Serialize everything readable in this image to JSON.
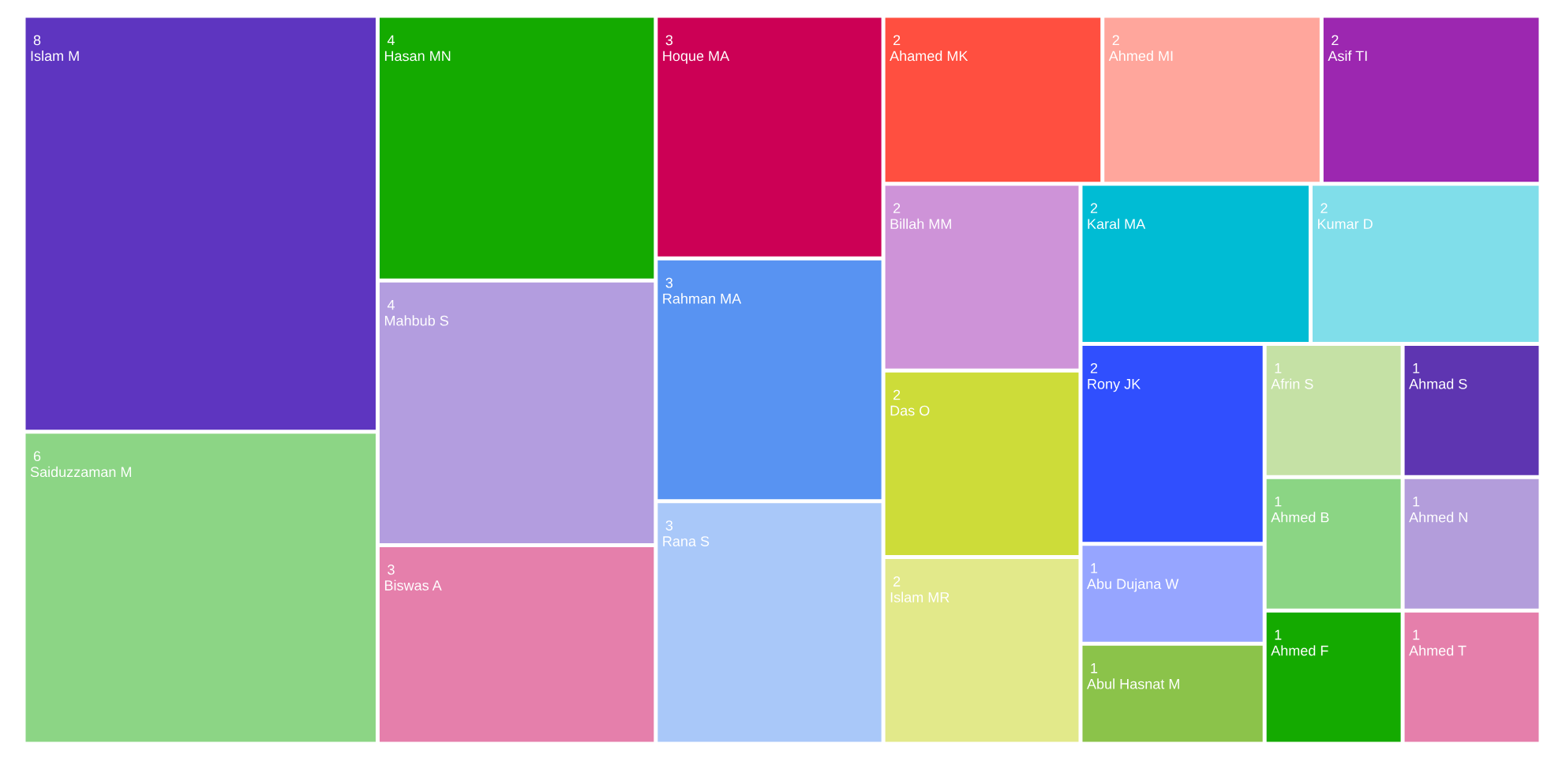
{
  "chart_data": {
    "type": "other",
    "categories": [
      "Islam M",
      "Saiduzzaman M",
      "Hasan MN",
      "Mahbub S",
      "Biswas A",
      "Hoque MA",
      "Rahman MA",
      "Rana S",
      "Ahamed MK",
      "Ahmed MI",
      "Asif TI",
      "Billah MM",
      "Das O",
      "Islam MR",
      "Karal MA",
      "Kumar D",
      "Rony JK",
      "Abu Dujana W",
      "Abul Hasnat M",
      "Afrin S",
      "Ahmad S",
      "Ahmed B",
      "Ahmed F",
      "Ahmed N",
      "Ahmed T"
    ],
    "values": [
      8,
      6,
      4,
      4,
      3,
      3,
      3,
      3,
      2,
      2,
      2,
      2,
      2,
      2,
      2,
      2,
      2,
      1,
      1,
      1,
      1,
      1,
      1,
      1,
      1
    ],
    "colors": [
      "#5e35c0",
      "#8cd585",
      "#14aa00",
      "#b39ddf",
      "#e57fab",
      "#cc0055",
      "#5893f2",
      "#a9c8f9",
      "#ff4f40",
      "#ffa69c",
      "#9c27b0",
      "#ce93d8",
      "#cddc39",
      "#e2e98a",
      "#00bcd4",
      "#80deea",
      "#304ffe",
      "#96a5ff",
      "#8bc34a",
      "#c5e1a5",
      "#5e35b1",
      "#8bd584",
      "#14aa00",
      "#b39ddb",
      "#e57fab"
    ],
    "data_labels": true
  }
}
